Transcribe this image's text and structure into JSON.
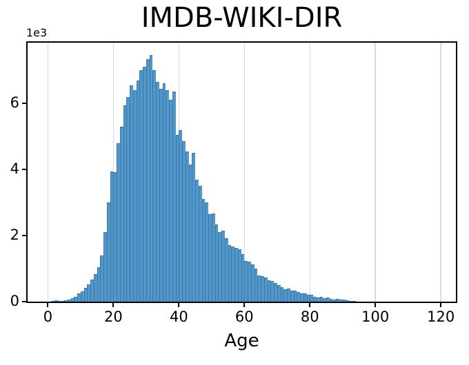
{
  "chart_data": {
    "type": "bar",
    "subtype": "histogram",
    "title": "IMDB-WIKI-DIR",
    "xlabel": "Age",
    "ylabel": "",
    "y_offset_text": "1e3",
    "values_unit": "1e3",
    "x_ticks": [
      0,
      20,
      40,
      60,
      80,
      100,
      120
    ],
    "x_tick_labels": [
      "0",
      "20",
      "40",
      "60",
      "80",
      "100",
      "120"
    ],
    "y_ticks": [
      0,
      2,
      4,
      6
    ],
    "y_tick_labels": [
      "0",
      "2",
      "4",
      "6"
    ],
    "xlim": [
      -6.2,
      124.6
    ],
    "ylim": [
      0,
      7.84
    ],
    "grid": "vertical-only",
    "bin_width": 1,
    "bin_start_age": 0,
    "bar_color": "#5496c6",
    "bar_edge_color": "#3079b5",
    "grid_color": "#d9d9d9",
    "axis_color": "#000000",
    "values": [
      0,
      0.02,
      0.05,
      0.025,
      0.03,
      0.045,
      0.065,
      0.095,
      0.15,
      0.25,
      0.32,
      0.42,
      0.52,
      0.66,
      0.84,
      1.05,
      1.4,
      2.1,
      3.0,
      3.95,
      3.93,
      4.8,
      5.3,
      5.95,
      6.2,
      6.55,
      6.4,
      6.7,
      7.0,
      7.1,
      7.35,
      7.47,
      7.0,
      6.65,
      6.45,
      6.6,
      6.4,
      6.1,
      6.35,
      5.05,
      5.2,
      4.85,
      4.55,
      4.15,
      4.5,
      3.7,
      3.5,
      3.1,
      3.0,
      2.65,
      2.67,
      2.33,
      2.1,
      2.15,
      1.92,
      1.72,
      1.67,
      1.63,
      1.58,
      1.43,
      1.22,
      1.2,
      1.12,
      1.0,
      0.8,
      0.77,
      0.72,
      0.65,
      0.62,
      0.56,
      0.5,
      0.44,
      0.38,
      0.4,
      0.33,
      0.33,
      0.3,
      0.25,
      0.24,
      0.2,
      0.21,
      0.15,
      0.13,
      0.15,
      0.11,
      0.12,
      0.085,
      0.07,
      0.09,
      0.055,
      0.055,
      0.035,
      0.03,
      0.015
    ]
  }
}
